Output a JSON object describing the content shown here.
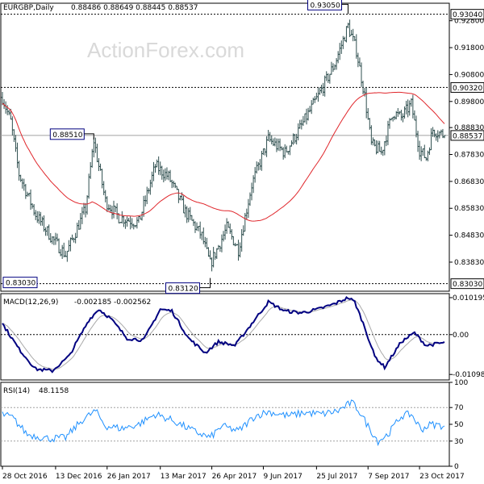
{
  "watermark": "ActionForex.com",
  "colors": {
    "price_bars": "#2f4f4f",
    "moving_average": "#e0262b",
    "macd_line": "#000080",
    "macd_signal": "#a9a9a9",
    "rsi_line": "#1e90ff",
    "level_line": "#000000",
    "current_line": "#a0a0a0"
  },
  "chart_data": [
    {
      "type": "ohlc",
      "title": "EURGBP,Daily",
      "ohlc_readout": [
        "0.88486",
        "0.88649",
        "0.88445",
        "0.88537"
      ],
      "ylim": [
        0.8275,
        0.9345
      ],
      "yticks": [
        "0.92800",
        "0.91800",
        "0.90800",
        "0.89800",
        "0.88830",
        "0.87830",
        "0.86830",
        "0.85830",
        "0.84830",
        "0.83830"
      ],
      "ytick_values": [
        0.928,
        0.918,
        0.908,
        0.898,
        0.8883,
        0.8783,
        0.8683,
        0.8583,
        0.8483,
        0.8383
      ],
      "xticks": [
        "28 Oct 2016",
        "13 Dec 2016",
        "26 Jan 2017",
        "13 Mar 2017",
        "26 Apr 2017",
        "9 Jun 2017",
        "25 Jul 2017",
        "7 Sep 2017",
        "23 Oct 2017"
      ],
      "xtick_index": [
        0,
        32,
        63,
        95,
        126,
        157,
        189,
        220,
        251
      ],
      "bar_count": 267,
      "path_keypoints": [
        [
          0,
          0.8995
        ],
        [
          5,
          0.8905
        ],
        [
          10,
          0.871
        ],
        [
          20,
          0.856
        ],
        [
          30,
          0.847
        ],
        [
          38,
          0.841
        ],
        [
          50,
          0.858
        ],
        [
          55,
          0.8835
        ],
        [
          62,
          0.861
        ],
        [
          70,
          0.855
        ],
        [
          82,
          0.853
        ],
        [
          92,
          0.874
        ],
        [
          100,
          0.87
        ],
        [
          110,
          0.857
        ],
        [
          120,
          0.848
        ],
        [
          125,
          0.8375
        ],
        [
          135,
          0.851
        ],
        [
          142,
          0.843
        ],
        [
          150,
          0.867
        ],
        [
          160,
          0.884
        ],
        [
          170,
          0.879
        ],
        [
          180,
          0.889
        ],
        [
          190,
          0.9
        ],
        [
          200,
          0.912
        ],
        [
          208,
          0.926
        ],
        [
          213,
          0.917
        ],
        [
          218,
          0.9
        ],
        [
          222,
          0.882
        ],
        [
          228,
          0.879
        ],
        [
          235,
          0.894
        ],
        [
          240,
          0.892
        ],
        [
          246,
          0.897
        ],
        [
          251,
          0.88
        ],
        [
          255,
          0.877
        ],
        [
          259,
          0.8875
        ],
        [
          266,
          0.8854
        ]
      ],
      "horizontal_levels": [
        {
          "label": "0.93040",
          "value": 0.9304
        },
        {
          "label": "0.90320",
          "value": 0.9032
        },
        {
          "label": "0.83030",
          "value": 0.8303
        }
      ],
      "current_price": {
        "label": "0.88537",
        "value": 0.88537
      },
      "annotations": [
        {
          "label": "0.93050",
          "index": 208,
          "value": 0.9305
        },
        {
          "label": "0.88510",
          "index": 55,
          "value": 0.8851
        },
        {
          "label": "0.83120",
          "index": 125,
          "value": 0.8312
        },
        {
          "label": "0.83030",
          "index": 0,
          "value": 0.8303
        }
      ]
    },
    {
      "type": "line",
      "title": "MACD(12,26,9)",
      "readout": [
        "-0.002185",
        "-0.002562"
      ],
      "ylim": [
        -0.0125,
        0.0113
      ],
      "yticks": [
        "0.010195",
        "0.00",
        "-0.010989"
      ],
      "ytick_values": [
        0.010195,
        0.0,
        -0.010989
      ],
      "zero_line": true,
      "macd_keypoints": [
        [
          0,
          0.003
        ],
        [
          10,
          -0.004
        ],
        [
          20,
          -0.0095
        ],
        [
          30,
          -0.01
        ],
        [
          40,
          -0.006
        ],
        [
          52,
          0.004
        ],
        [
          58,
          0.007
        ],
        [
          65,
          0.0045
        ],
        [
          75,
          -0.001
        ],
        [
          85,
          -0.0015
        ],
        [
          95,
          0.007
        ],
        [
          102,
          0.0065
        ],
        [
          112,
          -0.001
        ],
        [
          122,
          -0.005
        ],
        [
          130,
          -0.002
        ],
        [
          140,
          -0.003
        ],
        [
          150,
          0.003
        ],
        [
          160,
          0.009
        ],
        [
          170,
          0.0065
        ],
        [
          180,
          0.006
        ],
        [
          190,
          0.007
        ],
        [
          200,
          0.0085
        ],
        [
          208,
          0.0102
        ],
        [
          212,
          0.009
        ],
        [
          218,
          0.002
        ],
        [
          224,
          -0.006
        ],
        [
          230,
          -0.009
        ],
        [
          240,
          -0.002
        ],
        [
          248,
          0.0005
        ],
        [
          255,
          -0.003
        ],
        [
          266,
          -0.0022
        ]
      ]
    },
    {
      "type": "line",
      "title": "RSI(14)",
      "readout": [
        "48.1158"
      ],
      "ylim": [
        0,
        100
      ],
      "yticks": [
        "100",
        "70",
        "50",
        "30",
        "0"
      ],
      "ytick_values": [
        100,
        70,
        50,
        30,
        0
      ],
      "reference_levels": [
        70,
        30
      ],
      "rsi_keypoints": [
        [
          0,
          62
        ],
        [
          6,
          58
        ],
        [
          15,
          38
        ],
        [
          28,
          33
        ],
        [
          38,
          34
        ],
        [
          48,
          55
        ],
        [
          56,
          66
        ],
        [
          62,
          48
        ],
        [
          72,
          45
        ],
        [
          82,
          50
        ],
        [
          92,
          62
        ],
        [
          102,
          55
        ],
        [
          115,
          42
        ],
        [
          125,
          34
        ],
        [
          132,
          48
        ],
        [
          142,
          42
        ],
        [
          152,
          60
        ],
        [
          160,
          65
        ],
        [
          172,
          60
        ],
        [
          182,
          64
        ],
        [
          192,
          62
        ],
        [
          202,
          66
        ],
        [
          210,
          76
        ],
        [
          214,
          68
        ],
        [
          220,
          48
        ],
        [
          226,
          30
        ],
        [
          232,
          38
        ],
        [
          240,
          60
        ],
        [
          246,
          62
        ],
        [
          252,
          44
        ],
        [
          258,
          50
        ],
        [
          266,
          48.1
        ]
      ]
    }
  ]
}
